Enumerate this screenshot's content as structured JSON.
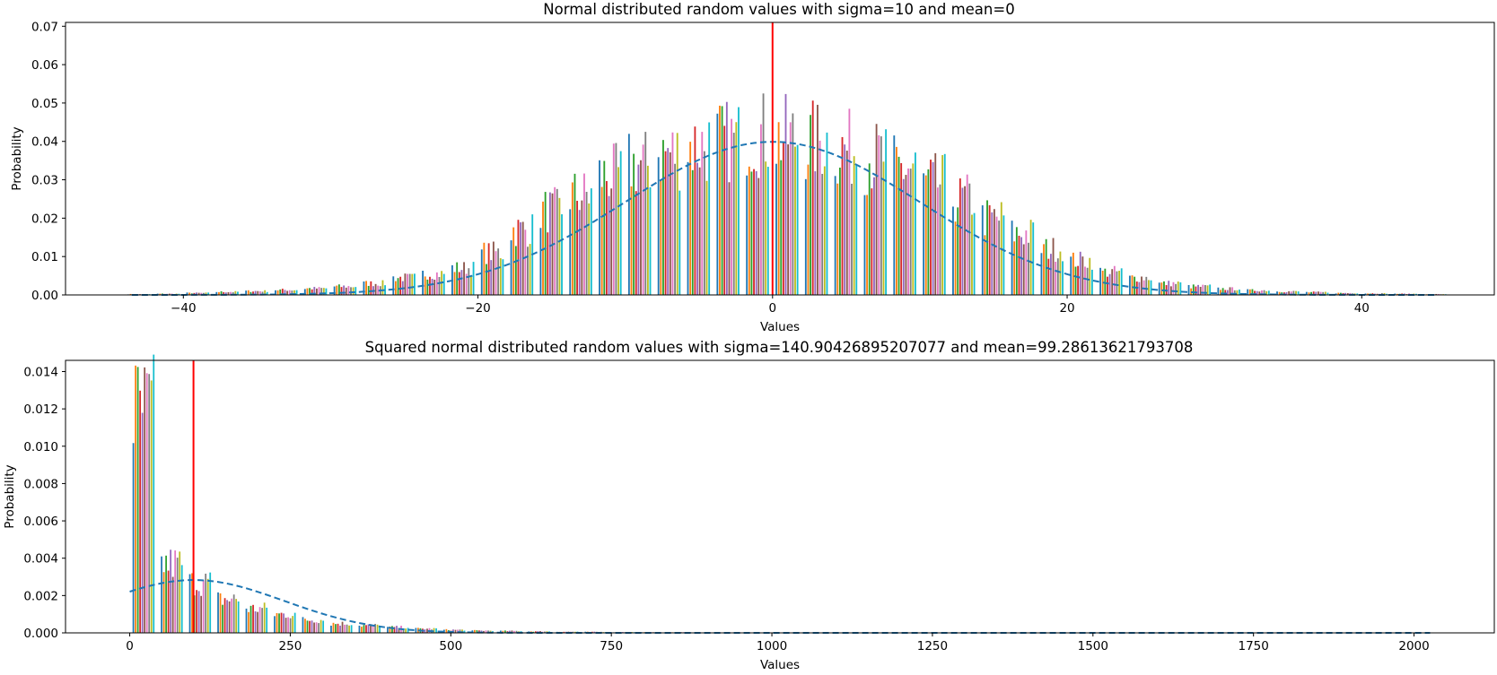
{
  "chart_data": [
    {
      "type": "bar",
      "title": "Normal distributed random values with sigma=10 and mean=0",
      "xlabel": "Values",
      "ylabel": "Probability",
      "xlim": [
        -48,
        49
      ],
      "ylim": [
        0,
        0.071
      ],
      "xticks": [
        -40,
        -20,
        0,
        20,
        40
      ],
      "xtick_labels": [
        "−40",
        "−20",
        "0",
        "20",
        "40"
      ],
      "yticks": [
        0,
        0.01,
        0.02,
        0.03,
        0.04,
        0.05,
        0.06,
        0.07
      ],
      "ytick_labels": [
        "0.00",
        "0.01",
        "0.02",
        "0.03",
        "0.04",
        "0.05",
        "0.06",
        "0.07"
      ],
      "grid": false,
      "mean_marker": {
        "x": 0,
        "color": "#ff0000"
      },
      "fit_curve": {
        "kind": "normal",
        "mu": 0,
        "sigma": 10,
        "x_range": [
          -43.5,
          45
        ],
        "style": "dashed",
        "color": "#1f77b4"
      },
      "bar_groups": {
        "x": [
          -43,
          -41,
          -39,
          -37,
          -35,
          -33,
          -31,
          -29,
          -27,
          -25,
          -23,
          -21,
          -19,
          -17,
          -15,
          -13,
          -11,
          -9,
          -7,
          -5,
          -3,
          -1,
          1,
          3,
          5,
          7,
          9,
          11,
          13,
          15,
          17,
          19,
          21,
          23,
          25,
          27,
          29,
          31,
          33,
          35,
          37,
          39,
          41,
          43,
          45
        ],
        "values": [
          0.0002,
          0.0003,
          0.0005,
          0.0008,
          0.001,
          0.0013,
          0.0017,
          0.0022,
          0.003,
          0.0045,
          0.0055,
          0.007,
          0.011,
          0.017,
          0.022,
          0.026,
          0.031,
          0.034,
          0.037,
          0.039,
          0.04,
          0.042,
          0.041,
          0.04,
          0.038,
          0.036,
          0.033,
          0.029,
          0.025,
          0.02,
          0.016,
          0.012,
          0.009,
          0.006,
          0.0045,
          0.003,
          0.0022,
          0.0016,
          0.0012,
          0.0009,
          0.0007,
          0.0005,
          0.0004,
          0.0003,
          0.0002
        ],
        "series_count": 10
      },
      "series_colors": [
        "#1f77b4",
        "#ff7f0e",
        "#2ca02c",
        "#d62728",
        "#9467bd",
        "#8c564b",
        "#e377c2",
        "#7f7f7f",
        "#bcbd22",
        "#17becf"
      ]
    },
    {
      "type": "bar",
      "title": "Squared normal distributed random values with sigma=140.90426895207077 and mean=99.28613621793708",
      "xlabel": "Values",
      "ylabel": "Probability",
      "xlim": [
        -100,
        2125
      ],
      "ylim": [
        0,
        0.0146
      ],
      "xticks": [
        0,
        250,
        500,
        750,
        1000,
        1250,
        1500,
        1750,
        2000
      ],
      "xtick_labels": [
        "0",
        "250",
        "500",
        "750",
        "1000",
        "1250",
        "1500",
        "1750",
        "2000"
      ],
      "yticks": [
        0,
        0.002,
        0.004,
        0.006,
        0.008,
        0.01,
        0.012,
        0.014
      ],
      "ytick_labels": [
        "0.000",
        "0.002",
        "0.004",
        "0.006",
        "0.008",
        "0.010",
        "0.012",
        "0.014"
      ],
      "grid": false,
      "mean_marker": {
        "x": 99.29,
        "color": "#ff0000"
      },
      "fit_curve": {
        "kind": "normal",
        "mu": 99.28613621793708,
        "sigma": 140.90426895207077,
        "x_range": [
          0,
          2025
        ],
        "style": "dashed",
        "color": "#1f77b4"
      },
      "bar_groups": {
        "x": [
          22,
          66,
          110,
          154,
          198,
          242,
          286,
          330,
          374,
          418,
          462,
          506,
          550,
          594,
          638,
          682,
          726,
          770,
          814,
          858,
          902,
          946,
          990,
          1034,
          1078,
          1122,
          1166,
          1210,
          1254,
          1298,
          1342,
          1386,
          1430,
          1474,
          1518,
          1562,
          1606,
          1650,
          1694,
          1738,
          1782,
          1826,
          1870,
          1914,
          1958,
          2002
        ],
        "values": [
          0.0118,
          0.0037,
          0.0027,
          0.0018,
          0.0013,
          0.001,
          0.0007,
          0.0005,
          0.0004,
          0.0003,
          0.00022,
          0.00016,
          0.00012,
          0.0001,
          8e-05,
          6e-05,
          5e-05,
          4e-05,
          3e-05,
          3e-05,
          2e-05,
          2e-05,
          2e-05,
          1e-05,
          1e-05,
          1e-05,
          1e-05,
          1e-05,
          1e-05,
          1e-05,
          1e-05,
          1e-05,
          1e-05,
          1e-05,
          1e-05,
          1e-05,
          1e-05,
          1e-05,
          1e-05,
          1e-05,
          1e-05,
          1e-05,
          1e-05,
          1e-05,
          1e-05,
          1e-05
        ],
        "series_count": 10
      },
      "series_colors": [
        "#1f77b4",
        "#ff7f0e",
        "#2ca02c",
        "#d62728",
        "#9467bd",
        "#8c564b",
        "#e377c2",
        "#7f7f7f",
        "#bcbd22",
        "#17becf"
      ]
    }
  ]
}
